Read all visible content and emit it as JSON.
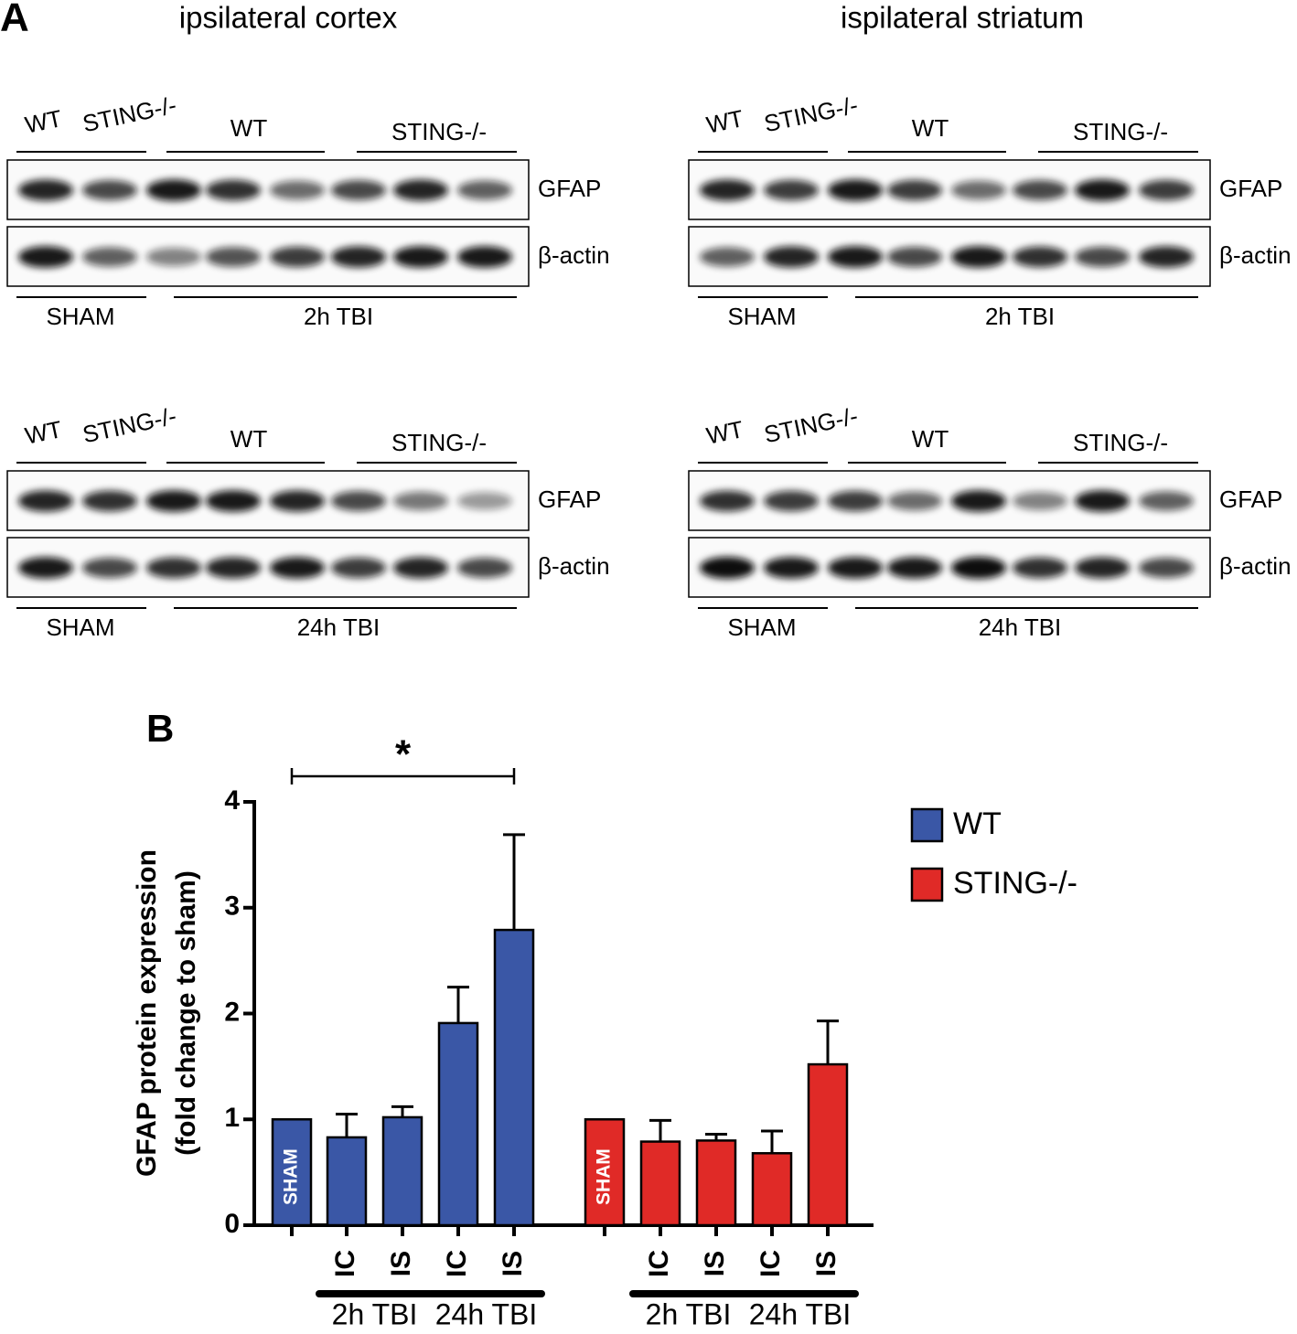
{
  "panel_a": {
    "label": "A",
    "columns": [
      "ipsilateral cortex",
      "ispilateral striatum"
    ],
    "blots": [
      {
        "genotypes": [
          "WT",
          "STING-/-",
          "WT",
          "STING-/-"
        ],
        "proteins": [
          "GFAP",
          "β-actin"
        ],
        "conditions": [
          "SHAM",
          "2h TBI"
        ]
      },
      {
        "genotypes": [
          "WT",
          "STING-/-",
          "WT",
          "STING-/-"
        ],
        "proteins": [
          "GFAP",
          "β-actin"
        ],
        "conditions": [
          "SHAM",
          "2h TBI"
        ]
      },
      {
        "genotypes": [
          "WT",
          "STING-/-",
          "WT",
          "STING-/-"
        ],
        "proteins": [
          "GFAP",
          "β-actin"
        ],
        "conditions": [
          "SHAM",
          "24h TBI"
        ]
      },
      {
        "genotypes": [
          "WT",
          "STING-/-",
          "WT",
          "STING-/-"
        ],
        "proteins": [
          "GFAP",
          "β-actin"
        ],
        "conditions": [
          "SHAM",
          "24h TBI"
        ]
      }
    ]
  },
  "chart_data": {
    "type": "bar",
    "label": "B",
    "y_label": [
      "GFAP protein expression",
      "(fold change to sham)"
    ],
    "categories": [
      "SHAM",
      "IC",
      "IS",
      "IC",
      "IS",
      "SHAM",
      "IC",
      "IS",
      "IC",
      "IS"
    ],
    "group_labels": [
      "2h TBI",
      "24h TBI",
      "2h TBI",
      "24h TBI"
    ],
    "series": [
      {
        "name": "WT",
        "color": "#3a57a6",
        "values": [
          1,
          0.83,
          1.02,
          1.91,
          2.79,
          null,
          null,
          null,
          null,
          null
        ],
        "errors": [
          null,
          0.22,
          0.1,
          0.34,
          0.9,
          null,
          null,
          null,
          null,
          null
        ]
      },
      {
        "name": "STING-/-",
        "color": "#e02a27",
        "values": [
          null,
          null,
          null,
          null,
          null,
          1,
          0.79,
          0.8,
          0.68,
          1.52
        ],
        "errors": [
          null,
          null,
          null,
          null,
          null,
          null,
          0.2,
          0.06,
          0.21,
          0.41
        ]
      }
    ],
    "annotation": "*",
    "ylim": [
      0,
      4
    ],
    "yticks": [
      0,
      1,
      2,
      3,
      4
    ]
  }
}
